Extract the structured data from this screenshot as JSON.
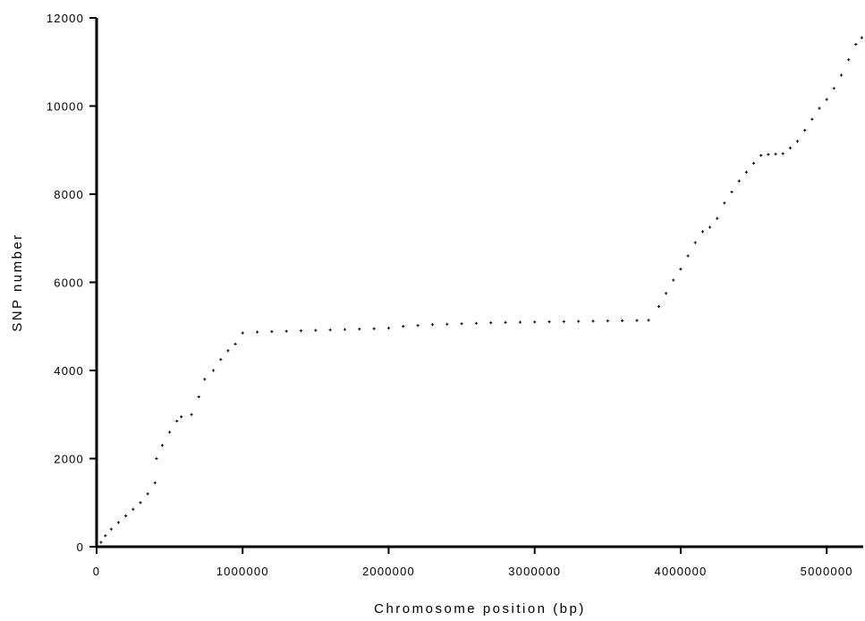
{
  "chart_data": {
    "type": "scatter",
    "title": "",
    "xlabel": "Chromosome position (bp)",
    "ylabel": "SNP number",
    "xlim": [
      0,
      5250000
    ],
    "ylim": [
      0,
      12000
    ],
    "xticks": [
      0,
      1000000,
      2000000,
      3000000,
      4000000,
      5000000
    ],
    "yticks": [
      0,
      2000,
      4000,
      6000,
      8000,
      10000,
      12000
    ],
    "xtick_labels": [
      "0",
      "1000000",
      "2000000",
      "3000000",
      "4000000",
      "5000000"
    ],
    "ytick_labels": [
      "0",
      "2000",
      "4000",
      "6000",
      "8000",
      "10000",
      "12000"
    ],
    "grid": false,
    "marker": "+",
    "series": [
      {
        "color": "#000000",
        "points": [
          [
            0,
            0
          ],
          [
            30000,
            100
          ],
          [
            60000,
            250
          ],
          [
            100000,
            400
          ],
          [
            150000,
            550
          ],
          [
            200000,
            700
          ],
          [
            250000,
            850
          ],
          [
            300000,
            1000
          ],
          [
            350000,
            1200
          ],
          [
            400000,
            1450
          ],
          [
            410000,
            2000
          ],
          [
            450000,
            2300
          ],
          [
            500000,
            2600
          ],
          [
            550000,
            2850
          ],
          [
            580000,
            2950
          ],
          [
            650000,
            3000
          ],
          [
            700000,
            3400
          ],
          [
            740000,
            3800
          ],
          [
            800000,
            4000
          ],
          [
            850000,
            4250
          ],
          [
            900000,
            4450
          ],
          [
            950000,
            4600
          ],
          [
            1000000,
            4850
          ],
          [
            1100000,
            4870
          ],
          [
            1200000,
            4880
          ],
          [
            1300000,
            4890
          ],
          [
            1400000,
            4900
          ],
          [
            1500000,
            4910
          ],
          [
            1600000,
            4920
          ],
          [
            1700000,
            4930
          ],
          [
            1800000,
            4940
          ],
          [
            1900000,
            4950
          ],
          [
            2000000,
            4960
          ],
          [
            2100000,
            5000
          ],
          [
            2200000,
            5020
          ],
          [
            2300000,
            5040
          ],
          [
            2400000,
            5050
          ],
          [
            2500000,
            5060
          ],
          [
            2600000,
            5070
          ],
          [
            2700000,
            5080
          ],
          [
            2800000,
            5090
          ],
          [
            2900000,
            5095
          ],
          [
            3000000,
            5100
          ],
          [
            3100000,
            5105
          ],
          [
            3200000,
            5110
          ],
          [
            3300000,
            5115
          ],
          [
            3400000,
            5120
          ],
          [
            3500000,
            5125
          ],
          [
            3600000,
            5130
          ],
          [
            3700000,
            5135
          ],
          [
            3780000,
            5140
          ],
          [
            3850000,
            5450
          ],
          [
            3900000,
            5750
          ],
          [
            3950000,
            6050
          ],
          [
            4000000,
            6300
          ],
          [
            4050000,
            6600
          ],
          [
            4100000,
            6900
          ],
          [
            4150000,
            7150
          ],
          [
            4200000,
            7250
          ],
          [
            4250000,
            7450
          ],
          [
            4300000,
            7800
          ],
          [
            4350000,
            8050
          ],
          [
            4400000,
            8300
          ],
          [
            4450000,
            8500
          ],
          [
            4500000,
            8700
          ],
          [
            4550000,
            8880
          ],
          [
            4600000,
            8900
          ],
          [
            4650000,
            8910
          ],
          [
            4700000,
            8920
          ],
          [
            4750000,
            9050
          ],
          [
            4800000,
            9200
          ],
          [
            4850000,
            9450
          ],
          [
            4900000,
            9700
          ],
          [
            4950000,
            9950
          ],
          [
            5000000,
            10150
          ],
          [
            5050000,
            10400
          ],
          [
            5100000,
            10700
          ],
          [
            5150000,
            11050
          ],
          [
            5200000,
            11400
          ],
          [
            5240000,
            11550
          ]
        ]
      }
    ]
  }
}
